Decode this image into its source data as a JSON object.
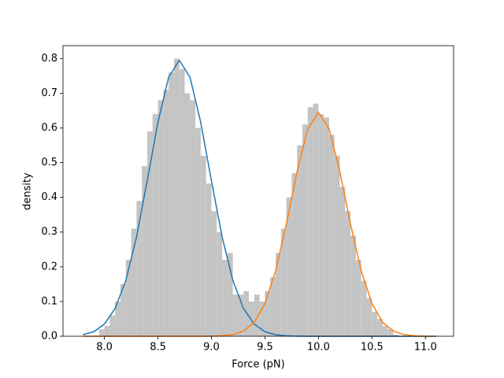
{
  "chart_data": [
    {
      "type": "histogram",
      "xlabel": "Force (pN)",
      "ylabel": "density",
      "xlim": [
        7.613,
        11.263
      ],
      "ylim": [
        0,
        0.837
      ],
      "xticks": [
        {
          "value": 8,
          "label": "8.0"
        },
        8.5,
        {
          "value": 9,
          "label": "9.0"
        },
        9.5,
        {
          "value": 10,
          "label": "10.0"
        },
        10.5,
        {
          "value": 11,
          "label": "11.0"
        }
      ],
      "yticks": [
        {
          "value": 0,
          "label": "0.0"
        },
        0.1,
        0.2,
        0.3,
        0.4,
        0.5,
        0.6,
        0.7,
        0.8
      ],
      "color": "#c4c4c4",
      "bins": [
        7.95,
        8.0,
        8.05,
        8.1,
        8.15,
        8.2,
        8.25,
        8.3,
        8.35,
        8.4,
        8.45,
        8.5,
        8.55,
        8.6,
        8.65,
        8.7,
        8.75,
        8.8,
        8.85,
        8.9,
        8.95,
        9.0,
        9.05,
        9.1,
        9.15,
        9.2,
        9.25,
        9.3,
        9.35,
        9.4,
        9.45,
        9.5,
        9.55,
        9.6,
        9.65,
        9.7,
        9.75,
        9.8,
        9.85,
        9.9,
        9.95,
        10.0,
        10.05,
        10.1,
        10.15,
        10.2,
        10.25,
        10.3,
        10.35,
        10.4,
        10.45,
        10.5,
        10.55,
        10.6,
        10.65,
        10.7,
        10.75
      ],
      "values": [
        0.02,
        0.03,
        0.06,
        0.1,
        0.15,
        0.22,
        0.31,
        0.39,
        0.49,
        0.59,
        0.64,
        0.68,
        0.71,
        0.76,
        0.8,
        0.77,
        0.7,
        0.68,
        0.6,
        0.52,
        0.44,
        0.36,
        0.3,
        0.22,
        0.24,
        0.12,
        0.12,
        0.13,
        0.1,
        0.12,
        0.1,
        0.13,
        0.17,
        0.24,
        0.31,
        0.4,
        0.47,
        0.55,
        0.61,
        0.66,
        0.67,
        0.64,
        0.63,
        0.58,
        0.52,
        0.43,
        0.36,
        0.29,
        0.22,
        0.16,
        0.11,
        0.07,
        0.05,
        0.03,
        0.02,
        0.005
      ]
    },
    {
      "type": "line",
      "x": [
        7.8,
        7.9,
        8.0,
        8.1,
        8.2,
        8.3,
        8.4,
        8.5,
        8.6,
        8.7,
        8.8,
        8.9,
        9.0,
        9.1,
        9.2,
        9.3,
        9.4,
        9.5,
        9.6,
        9.7,
        9.8,
        9.9,
        10.0,
        10.1,
        10.2,
        10.3,
        10.4,
        10.5,
        10.6,
        10.7,
        10.8,
        10.9,
        11.0,
        11.1
      ],
      "series": [
        {
          "color": "#1f77b4",
          "values": [
            0.0045,
            0.013,
            0.035,
            0.08,
            0.161,
            0.286,
            0.448,
            0.616,
            0.746,
            0.795,
            0.746,
            0.616,
            0.448,
            0.286,
            0.161,
            0.08,
            0.035,
            0.013,
            0.0045,
            0.0014,
            0.0004,
            0,
            0,
            0,
            0,
            0,
            0,
            0,
            0,
            0,
            0,
            0,
            0,
            0
          ]
        },
        {
          "color": "#ff7f0e",
          "values": [
            0,
            0,
            0,
            0,
            0,
            0,
            0,
            0,
            0,
            0,
            0,
            0,
            0.0003,
            0.0013,
            0.0047,
            0.015,
            0.04,
            0.094,
            0.188,
            0.323,
            0.474,
            0.597,
            0.645,
            0.597,
            0.474,
            0.323,
            0.188,
            0.094,
            0.04,
            0.015,
            0.0047,
            0.0013,
            0.0003,
            0
          ]
        }
      ]
    }
  ]
}
